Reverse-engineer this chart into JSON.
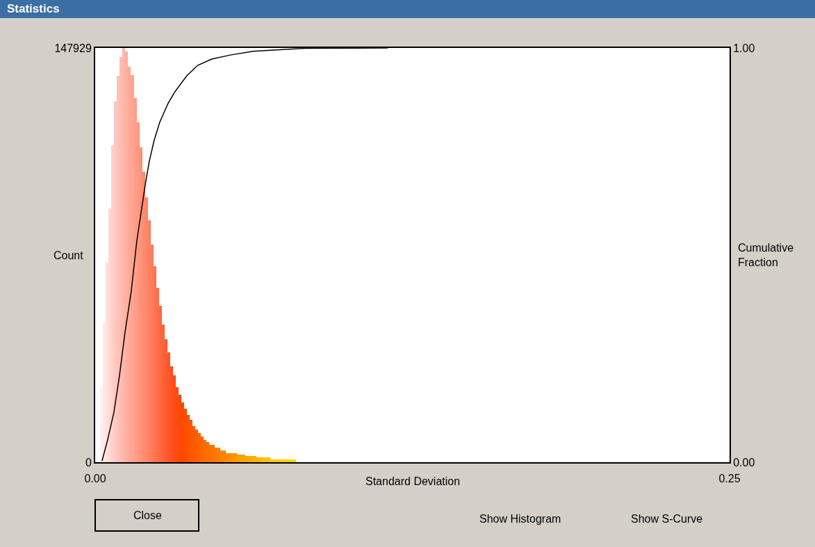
{
  "chart_data": {
    "type": "histogram",
    "title": "Statistics",
    "xlabel": "Standard Deviation",
    "ylabel": "Count",
    "y2label": "Cumulative Fraction",
    "annotations": [
      "Close",
      "Show Histogram",
      "Show S-Curve"
    ],
    "bins": [
      0.002,
      0.0031,
      0.0042,
      0.0053,
      0.0064,
      0.0075,
      0.0086,
      0.0097,
      0.0108,
      0.0119,
      0.013,
      0.0141,
      0.0152,
      0.0163,
      0.0174,
      0.0185,
      0.0196,
      0.0207,
      0.0218,
      0.0229,
      0.024,
      0.0251,
      0.0262,
      0.0273,
      0.0284,
      0.0295,
      0.0306,
      0.0317,
      0.0328,
      0.0339,
      0.035,
      0.0361,
      0.0372,
      0.0383,
      0.0394,
      0.0405,
      0.0416,
      0.0427,
      0.0438,
      0.0449,
      0.046,
      0.0471,
      0.0482,
      0.0493,
      0.0504,
      0.0515,
      0.0526,
      0.0537,
      0.0548,
      0.0559,
      0.057,
      0.0581,
      0.0592,
      0.0603,
      0.0614,
      0.0625,
      0.0636,
      0.0647,
      0.0658,
      0.0669,
      0.068,
      0.0691,
      0.0702,
      0.0713,
      0.0724,
      0.0735,
      0.0746,
      0.0757,
      0.0768,
      0.0779,
      0.079
    ],
    "values": [
      26800,
      49700,
      71600,
      90700,
      113100,
      128800,
      138000,
      144700,
      147929,
      146700,
      141200,
      138200,
      130000,
      121300,
      112400,
      103700,
      94500,
      86300,
      77600,
      70100,
      62200,
      55900,
      49200,
      44000,
      39300,
      34300,
      31100,
      26800,
      24100,
      21400,
      19100,
      16900,
      15200,
      12900,
      11700,
      10400,
      9200,
      8000,
      7200,
      6200,
      6200,
      5200,
      5200,
      4200,
      4200,
      3200,
      3200,
      3200,
      3200,
      2700,
      2700,
      2700,
      2200,
      2200,
      2200,
      2200,
      1700,
      1700,
      1700,
      1700,
      1700,
      1000,
      1000,
      1000,
      1000,
      1000,
      1000,
      1000,
      1000,
      1000
    ],
    "colors": [
      "#fff0f0",
      "#ffe8e6",
      "#ffe0dc",
      "#ffd8d2",
      "#ffd0c8",
      "#ffc8c0",
      "#ffc2b8",
      "#ffbcb0",
      "#ffb6a8",
      "#ffb0a0",
      "#ffaa98",
      "#ffa490",
      "#ff9e88",
      "#ff9880",
      "#ff9278",
      "#ff8c70",
      "#ff8668",
      "#ff8060",
      "#ff7a58",
      "#ff7450",
      "#ff6e48",
      "#ff6840",
      "#ff6238",
      "#ff5c30",
      "#ff5628",
      "#ff5020",
      "#ff4c18",
      "#ff4a10",
      "#ff4808",
      "#ff4a00",
      "#ff4e00",
      "#ff5200",
      "#ff5600",
      "#ff5a00",
      "#ff5e00",
      "#ff6200",
      "#ff6600",
      "#ff6a00",
      "#ff6e00",
      "#ff7200",
      "#ff7600",
      "#ff7a00",
      "#ff7e00",
      "#ff8200",
      "#ff8600",
      "#ff8a00",
      "#ff8e00",
      "#ff9200",
      "#ff9600",
      "#ff9a00",
      "#ff9e00",
      "#ffa200",
      "#ffa600",
      "#ffaa00",
      "#ffae00",
      "#ffb200",
      "#ffb600",
      "#ffba00",
      "#ffbe00",
      "#ffc200",
      "#ffc400",
      "#ffc600",
      "#ffc800",
      "#ffca00",
      "#ffcc00",
      "#ffce00",
      "#ffd000",
      "#ffd200",
      "#ffd400",
      "#ffd600"
    ],
    "series": [
      {
        "type": "line",
        "axis": "y2",
        "color": "#000000",
        "x": [
          0.0027,
          0.0049,
          0.0074,
          0.0096,
          0.0117,
          0.0142,
          0.0164,
          0.0197,
          0.0213,
          0.0232,
          0.0254,
          0.0287,
          0.0314,
          0.0361,
          0.0404,
          0.0459,
          0.0533,
          0.0623,
          0.0705,
          0.0825,
          0.1153
        ],
        "values": [
          0.003,
          0.054,
          0.121,
          0.21,
          0.311,
          0.412,
          0.534,
          0.669,
          0.726,
          0.776,
          0.82,
          0.866,
          0.894,
          0.933,
          0.958,
          0.973,
          0.983,
          0.992,
          0.995,
          0.999,
          1.0
        ]
      }
    ],
    "xlim": [
      0,
      0.25
    ],
    "xticks": [
      {
        "value": 0,
        "label": "0.00"
      },
      {
        "value": 0.25,
        "label": "0.25"
      }
    ],
    "ylim": [
      0,
      147929
    ],
    "yticks": [
      0,
      147929
    ],
    "y2lim": [
      0,
      1
    ],
    "y2ticks": [
      {
        "value": 0,
        "label": "0.00"
      },
      {
        "value": 1,
        "label": "1.00"
      }
    ],
    "line_style": "solid",
    "marker": "none"
  }
}
